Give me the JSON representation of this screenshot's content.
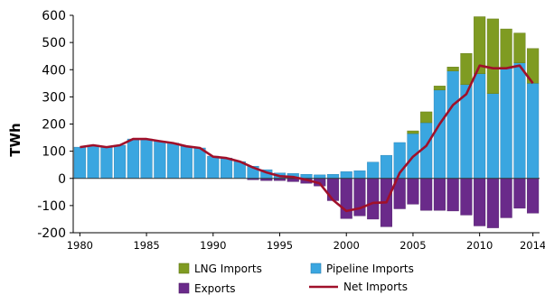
{
  "chart_data": {
    "type": "bar",
    "ylabel": "TWh",
    "ylim": [
      -200,
      600
    ],
    "yticks": [
      -200,
      -100,
      0,
      100,
      200,
      300,
      400,
      500,
      600
    ],
    "xtick_labels": [
      "1980",
      "1985",
      "1990",
      "1995",
      "2000",
      "2005",
      "2010",
      "2014"
    ],
    "years": [
      1980,
      1981,
      1982,
      1983,
      1984,
      1985,
      1986,
      1987,
      1988,
      1989,
      1990,
      1991,
      1992,
      1993,
      1994,
      1995,
      1996,
      1997,
      1998,
      1999,
      2000,
      2001,
      2002,
      2003,
      2004,
      2005,
      2006,
      2007,
      2008,
      2009,
      2010,
      2011,
      2012,
      2013,
      2014
    ],
    "series": [
      {
        "name": "Pipeline Imports",
        "color": "#3aa6e0",
        "values": [
          115,
          122,
          115,
          122,
          145,
          145,
          137,
          130,
          118,
          112,
          82,
          75,
          62,
          45,
          32,
          20,
          18,
          15,
          13,
          15,
          25,
          28,
          60,
          85,
          132,
          165,
          205,
          325,
          395,
          345,
          385,
          312,
          405,
          425,
          350
        ]
      },
      {
        "name": "LNG Imports",
        "color": "#7f9b22",
        "values": [
          0,
          0,
          0,
          0,
          0,
          0,
          0,
          0,
          0,
          0,
          0,
          0,
          0,
          0,
          0,
          0,
          0,
          0,
          0,
          0,
          0,
          0,
          0,
          0,
          0,
          10,
          40,
          15,
          15,
          115,
          210,
          275,
          145,
          110,
          128
        ]
      },
      {
        "name": "Exports",
        "color": "#6a2a8a",
        "values": [
          0,
          0,
          0,
          0,
          0,
          0,
          0,
          0,
          0,
          0,
          0,
          0,
          0,
          -5,
          -8,
          -8,
          -12,
          -18,
          -28,
          -82,
          -148,
          -138,
          -150,
          -178,
          -112,
          -95,
          -118,
          -118,
          -120,
          -135,
          -175,
          -182,
          -145,
          -110,
          -128
        ]
      },
      {
        "name": "Net Imports",
        "color": "#a0102a",
        "values": [
          115,
          122,
          115,
          122,
          145,
          145,
          137,
          130,
          118,
          112,
          80,
          75,
          62,
          40,
          22,
          8,
          5,
          -5,
          -18,
          -80,
          -120,
          -110,
          -90,
          -88,
          20,
          80,
          120,
          200,
          270,
          310,
          415,
          405,
          405,
          415,
          350
        ]
      }
    ],
    "legend": [
      "LNG Imports",
      "Pipeline Imports",
      "Exports",
      "Net Imports"
    ],
    "legend_position": "bottom",
    "grid": false
  }
}
